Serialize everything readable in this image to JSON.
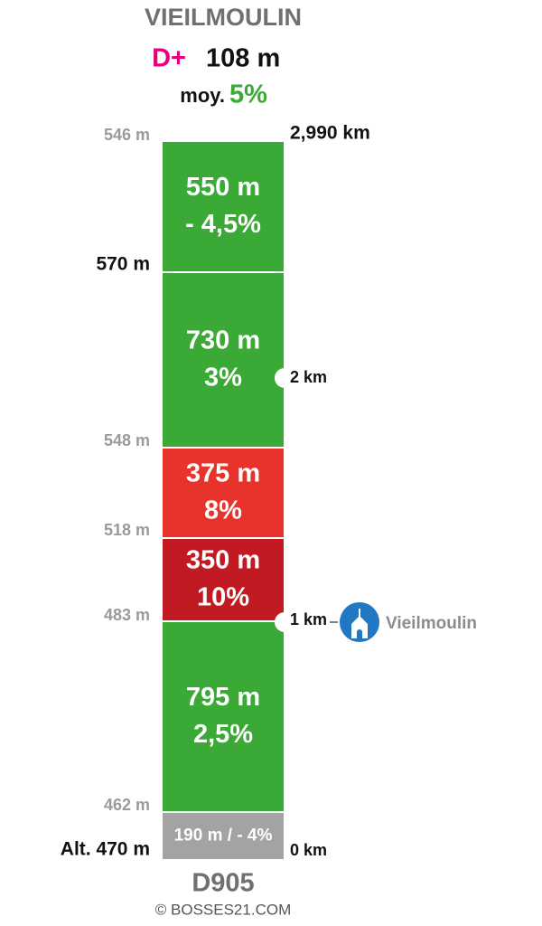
{
  "title": "VIEILMOULIN",
  "gain": {
    "label": "D+",
    "value": "108 m"
  },
  "average": {
    "label": "moy.",
    "value": "5%"
  },
  "segments": [
    {
      "length": "550 m",
      "grade": "- 4,5%",
      "color": "#3aa935"
    },
    {
      "length": "730 m",
      "grade": "3%",
      "color": "#3aa935"
    },
    {
      "length": "375 m",
      "grade": "8%",
      "color": "#e7332c"
    },
    {
      "length": "350 m",
      "grade": "10%",
      "color": "#c11a22"
    },
    {
      "length": "795 m",
      "grade": "2,5%",
      "color": "#3aa935"
    },
    {
      "label": "190 m / - 4%",
      "color": "#a3a3a3"
    }
  ],
  "altitudes": [
    "546 m",
    "570 m",
    "548 m",
    "518 m",
    "483 m",
    "462 m",
    "Alt. 470 m"
  ],
  "distances": [
    "2,990 km",
    "2 km",
    "1 km",
    "0 km"
  ],
  "landmark": "Vieilmoulin",
  "road": "D905",
  "credit": "© BOSSES21.COM"
}
